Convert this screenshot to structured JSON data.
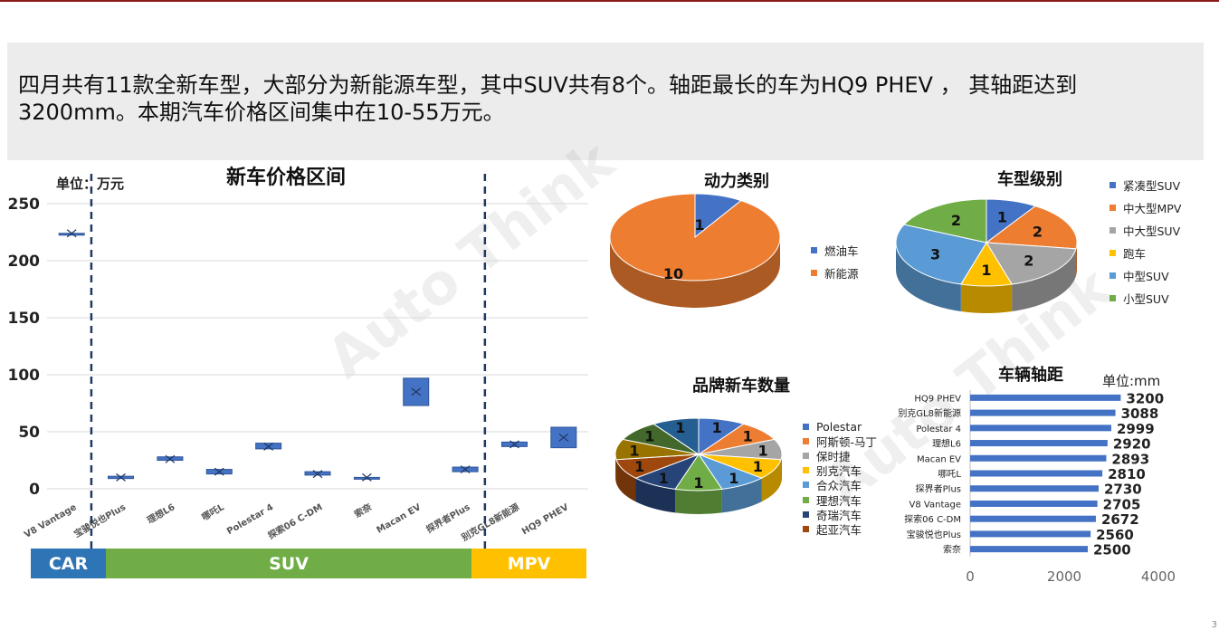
{
  "summary": {
    "line1": "四月共有11款全新车型，大部分为新能源车型，其中SUV共有8个。轴距最长的车为HQ9 PHEV ， 其轴距达到",
    "line2": "3200mm。本期汽车价格区间集中在10-55万元。"
  },
  "watermark": "Auto Think",
  "page_number": "3",
  "colors": {
    "car": "#2e75b6",
    "suv": "#70ad47",
    "mpv": "#ffc000",
    "box": "#4472c4",
    "bar": "#4472c4"
  },
  "segments": [
    {
      "label": "CAR",
      "color": "#2e75b6"
    },
    {
      "label": "SUV",
      "color": "#70ad47"
    },
    {
      "label": "MPV",
      "color": "#ffc000"
    }
  ],
  "chart_data": [
    {
      "type": "box",
      "title": "新车价格区间",
      "unit": "单位：万元",
      "ylim": [
        0,
        250
      ],
      "yticks": [
        0,
        50,
        100,
        150,
        200,
        250
      ],
      "grid": true,
      "categories": [
        "V8 Vantage",
        "宝骏悦也Plus",
        "理想L6",
        "哪吒L",
        "Polestar 4",
        "探索06 C-DM",
        "索奈",
        "Macan EV",
        "探界者Plus",
        "别克GL8新能源",
        "HQ9 PHEV"
      ],
      "ranges": [
        [
          224,
          224
        ],
        [
          9,
          11
        ],
        [
          25,
          28
        ],
        [
          13,
          17
        ],
        [
          35,
          40
        ],
        [
          12,
          15
        ],
        [
          9,
          10
        ],
        [
          73,
          97
        ],
        [
          15,
          19
        ],
        [
          37,
          41
        ],
        [
          36,
          54
        ]
      ],
      "means": [
        224,
        10,
        26,
        15,
        37,
        13,
        10,
        85,
        17,
        39,
        45
      ]
    },
    {
      "type": "pie",
      "title": "动力类别",
      "labels": [
        "燃油车",
        "新能源"
      ],
      "values": [
        1,
        10
      ],
      "colors": [
        "#4472c4",
        "#ed7d31"
      ],
      "legend": "right"
    },
    {
      "type": "pie",
      "title": "车型级别",
      "labels": [
        "紧凑型SUV",
        "中大型MPV",
        "中大型SUV",
        "跑车",
        "中型SUV",
        "小型SUV"
      ],
      "values": [
        1,
        2,
        2,
        1,
        3,
        2
      ],
      "colors": [
        "#4472c4",
        "#ed7d31",
        "#a5a5a5",
        "#ffc000",
        "#5b9bd5",
        "#70ad47"
      ],
      "legend": "right"
    },
    {
      "type": "pie",
      "title": "品牌新车数量",
      "labels": [
        "Polestar",
        "阿斯顿-马丁",
        "保时捷",
        "别克汽车",
        "合众汽车",
        "理想汽车",
        "奇瑞汽车",
        "起亚汽车",
        "",
        "",
        ""
      ],
      "values": [
        1,
        1,
        1,
        1,
        1,
        1,
        1,
        1,
        1,
        1,
        1
      ],
      "colors": [
        "#4472c4",
        "#ed7d31",
        "#a5a5a5",
        "#ffc000",
        "#5b9bd5",
        "#70ad47",
        "#264478",
        "#9e480e",
        "#997300",
        "#43682b",
        "#255e91"
      ],
      "legend": "right"
    },
    {
      "type": "bar",
      "orientation": "horizontal",
      "title": "车辆轴距",
      "unit": "单位:mm",
      "xlim": [
        0,
        4000
      ],
      "xticks": [
        0,
        2000,
        4000
      ],
      "categories": [
        "HQ9 PHEV",
        "别克GL8新能源",
        "Polestar 4",
        "理想L6",
        "Macan EV",
        "哪吒L",
        "探界者Plus",
        "V8 Vantage",
        "探索06 C-DM",
        "宝骏悦也Plus",
        "索奈"
      ],
      "values": [
        3200,
        3088,
        2999,
        2920,
        2893,
        2810,
        2730,
        2705,
        2672,
        2560,
        2500
      ]
    }
  ]
}
